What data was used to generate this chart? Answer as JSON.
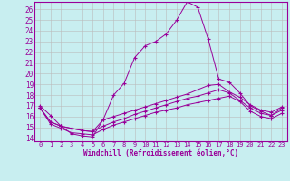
{
  "xlabel": "Windchill (Refroidissement éolien,°C)",
  "bg_color": "#c8eef0",
  "line_color": "#990099",
  "grid_color": "#bbbbbb",
  "ylim": [
    13.7,
    26.7
  ],
  "xlim": [
    -0.5,
    23.5
  ],
  "yticks": [
    14,
    15,
    16,
    17,
    18,
    19,
    20,
    21,
    22,
    23,
    24,
    25,
    26
  ],
  "xticks": [
    0,
    1,
    2,
    3,
    4,
    5,
    6,
    7,
    8,
    9,
    10,
    11,
    12,
    13,
    14,
    15,
    16,
    17,
    18,
    19,
    20,
    21,
    22,
    23
  ],
  "line1_y": [
    17.0,
    16.1,
    15.1,
    14.4,
    14.2,
    14.1,
    15.7,
    18.0,
    19.1,
    21.5,
    22.6,
    23.0,
    23.7,
    25.0,
    26.7,
    26.2,
    23.2,
    19.5,
    19.2,
    18.2,
    17.0,
    16.5,
    16.1,
    16.8
  ],
  "line2_y": [
    16.8,
    15.5,
    15.1,
    14.9,
    14.7,
    14.6,
    15.7,
    16.0,
    16.3,
    16.6,
    16.9,
    17.2,
    17.5,
    17.8,
    18.1,
    18.5,
    18.9,
    19.0,
    18.3,
    17.8,
    17.1,
    16.6,
    16.4,
    16.9
  ],
  "line3_y": [
    16.8,
    15.5,
    15.1,
    14.9,
    14.7,
    14.6,
    15.1,
    15.5,
    15.8,
    16.2,
    16.5,
    16.8,
    17.1,
    17.4,
    17.7,
    17.9,
    18.2,
    18.5,
    18.2,
    17.5,
    16.8,
    16.3,
    16.1,
    16.6
  ],
  "line4_y": [
    16.8,
    15.3,
    14.9,
    14.5,
    14.4,
    14.3,
    14.8,
    15.2,
    15.5,
    15.8,
    16.1,
    16.4,
    16.6,
    16.8,
    17.1,
    17.3,
    17.5,
    17.7,
    17.9,
    17.4,
    16.5,
    16.0,
    15.8,
    16.3
  ]
}
